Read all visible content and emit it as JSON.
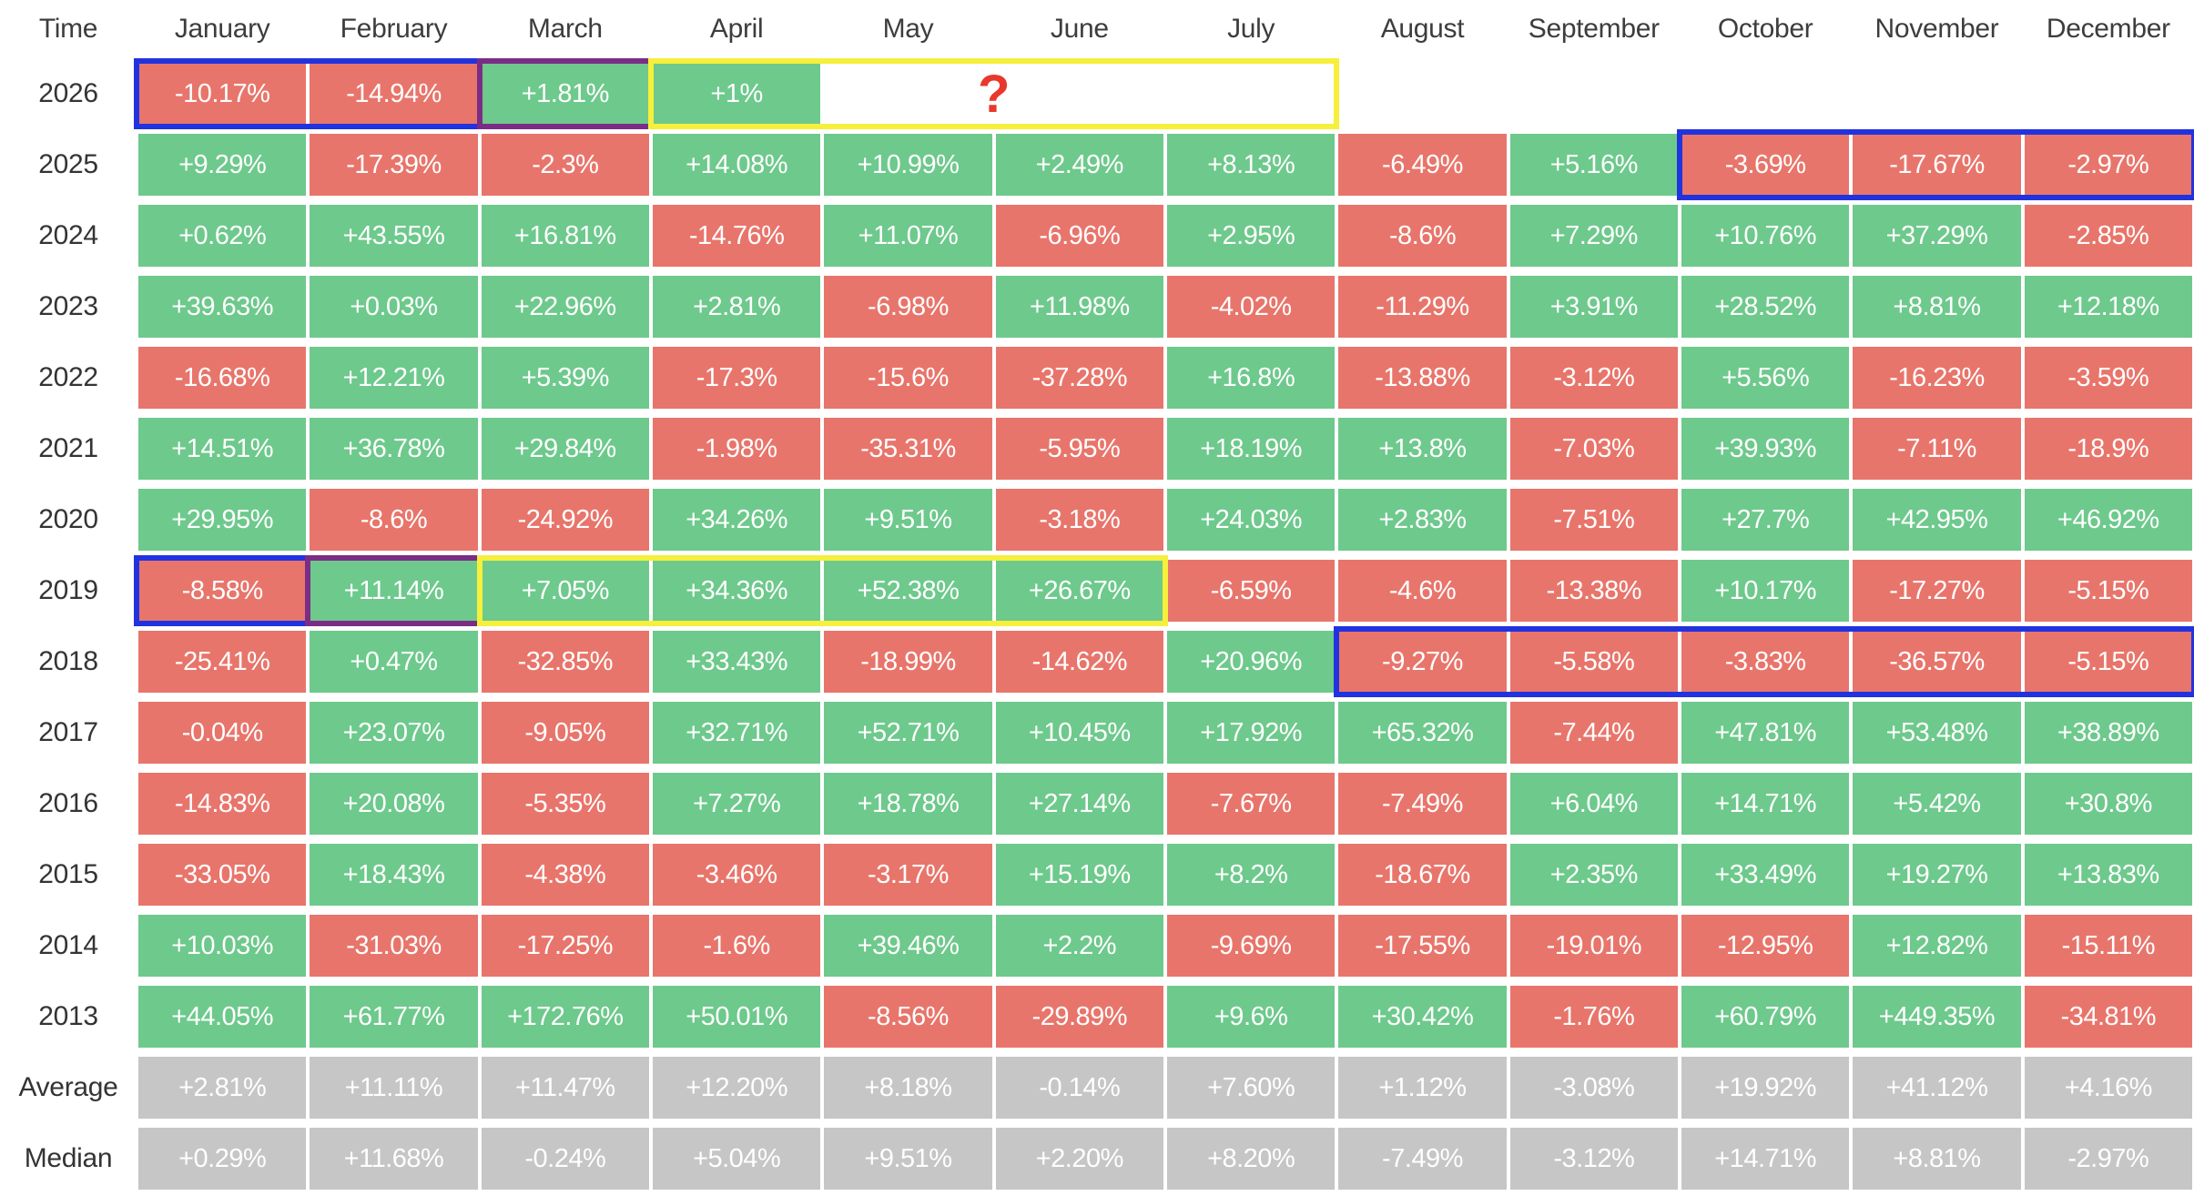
{
  "colors": {
    "positive": "#6ec98c",
    "negative": "#e8756b",
    "summary": "#c6c6c6",
    "highlight_blue": "#2133df",
    "highlight_purple": "#7b2d86",
    "highlight_yellow": "#f6ef3c",
    "question": "#e8382d",
    "header_text": "#3d3d3d",
    "cell_text": "#ffffff"
  },
  "chart_data": {
    "type": "heatmap",
    "corner_label": "Time",
    "columns": [
      "January",
      "February",
      "March",
      "April",
      "May",
      "June",
      "July",
      "August",
      "September",
      "October",
      "November",
      "December"
    ],
    "rows": [
      {
        "label": "2026",
        "type": "year",
        "values": [
          "-10.17%",
          "-14.94%",
          "+1.81%",
          "+1%",
          null,
          null,
          null,
          null,
          null,
          null,
          null,
          null
        ]
      },
      {
        "label": "2025",
        "type": "year",
        "values": [
          "+9.29%",
          "-17.39%",
          "-2.3%",
          "+14.08%",
          "+10.99%",
          "+2.49%",
          "+8.13%",
          "-6.49%",
          "+5.16%",
          "-3.69%",
          "-17.67%",
          "-2.97%"
        ]
      },
      {
        "label": "2024",
        "type": "year",
        "values": [
          "+0.62%",
          "+43.55%",
          "+16.81%",
          "-14.76%",
          "+11.07%",
          "-6.96%",
          "+2.95%",
          "-8.6%",
          "+7.29%",
          "+10.76%",
          "+37.29%",
          "-2.85%"
        ]
      },
      {
        "label": "2023",
        "type": "year",
        "values": [
          "+39.63%",
          "+0.03%",
          "+22.96%",
          "+2.81%",
          "-6.98%",
          "+11.98%",
          "-4.02%",
          "-11.29%",
          "+3.91%",
          "+28.52%",
          "+8.81%",
          "+12.18%"
        ]
      },
      {
        "label": "2022",
        "type": "year",
        "values": [
          "-16.68%",
          "+12.21%",
          "+5.39%",
          "-17.3%",
          "-15.6%",
          "-37.28%",
          "+16.8%",
          "-13.88%",
          "-3.12%",
          "+5.56%",
          "-16.23%",
          "-3.59%"
        ]
      },
      {
        "label": "2021",
        "type": "year",
        "values": [
          "+14.51%",
          "+36.78%",
          "+29.84%",
          "-1.98%",
          "-35.31%",
          "-5.95%",
          "+18.19%",
          "+13.8%",
          "-7.03%",
          "+39.93%",
          "-7.11%",
          "-18.9%"
        ]
      },
      {
        "label": "2020",
        "type": "year",
        "values": [
          "+29.95%",
          "-8.6%",
          "-24.92%",
          "+34.26%",
          "+9.51%",
          "-3.18%",
          "+24.03%",
          "+2.83%",
          "-7.51%",
          "+27.7%",
          "+42.95%",
          "+46.92%"
        ]
      },
      {
        "label": "2019",
        "type": "year",
        "values": [
          "-8.58%",
          "+11.14%",
          "+7.05%",
          "+34.36%",
          "+52.38%",
          "+26.67%",
          "-6.59%",
          "-4.6%",
          "-13.38%",
          "+10.17%",
          "-17.27%",
          "-5.15%"
        ]
      },
      {
        "label": "2018",
        "type": "year",
        "values": [
          "-25.41%",
          "+0.47%",
          "-32.85%",
          "+33.43%",
          "-18.99%",
          "-14.62%",
          "+20.96%",
          "-9.27%",
          "-5.58%",
          "-3.83%",
          "-36.57%",
          "-5.15%"
        ]
      },
      {
        "label": "2017",
        "type": "year",
        "values": [
          "-0.04%",
          "+23.07%",
          "-9.05%",
          "+32.71%",
          "+52.71%",
          "+10.45%",
          "+17.92%",
          "+65.32%",
          "-7.44%",
          "+47.81%",
          "+53.48%",
          "+38.89%"
        ]
      },
      {
        "label": "2016",
        "type": "year",
        "values": [
          "-14.83%",
          "+20.08%",
          "-5.35%",
          "+7.27%",
          "+18.78%",
          "+27.14%",
          "-7.67%",
          "-7.49%",
          "+6.04%",
          "+14.71%",
          "+5.42%",
          "+30.8%"
        ]
      },
      {
        "label": "2015",
        "type": "year",
        "values": [
          "-33.05%",
          "+18.43%",
          "-4.38%",
          "-3.46%",
          "-3.17%",
          "+15.19%",
          "+8.2%",
          "-18.67%",
          "+2.35%",
          "+33.49%",
          "+19.27%",
          "+13.83%"
        ]
      },
      {
        "label": "2014",
        "type": "year",
        "values": [
          "+10.03%",
          "-31.03%",
          "-17.25%",
          "-1.6%",
          "+39.46%",
          "+2.2%",
          "-9.69%",
          "-17.55%",
          "-19.01%",
          "-12.95%",
          "+12.82%",
          "-15.11%"
        ]
      },
      {
        "label": "2013",
        "type": "year",
        "values": [
          "+44.05%",
          "+61.77%",
          "+172.76%",
          "+50.01%",
          "-8.56%",
          "-29.89%",
          "+9.6%",
          "+30.42%",
          "-1.76%",
          "+60.79%",
          "+449.35%",
          "-34.81%"
        ]
      },
      {
        "label": "Average",
        "type": "summary",
        "values": [
          "+2.81%",
          "+11.11%",
          "+11.47%",
          "+12.20%",
          "+8.18%",
          "-0.14%",
          "+7.60%",
          "+1.12%",
          "-3.08%",
          "+19.92%",
          "+41.12%",
          "+4.16%"
        ]
      },
      {
        "label": "Median",
        "type": "summary",
        "values": [
          "+0.29%",
          "+11.68%",
          "-0.24%",
          "+5.04%",
          "+9.51%",
          "+2.20%",
          "+8.20%",
          "-7.49%",
          "-3.12%",
          "+14.71%",
          "+8.81%",
          "-2.97%"
        ]
      }
    ],
    "annotations": {
      "highlights": [
        {
          "row": "2026",
          "col_start": 1,
          "col_end": 2,
          "color": "blue"
        },
        {
          "row": "2026",
          "col_start": 3,
          "col_end": 3,
          "color": "purple"
        },
        {
          "row": "2026",
          "col_start": 4,
          "col_end": 7,
          "color": "yellow"
        },
        {
          "row": "2025",
          "col_start": 10,
          "col_end": 12,
          "color": "blue"
        },
        {
          "row": "2019",
          "col_start": 1,
          "col_end": 1,
          "color": "blue"
        },
        {
          "row": "2019",
          "col_start": 2,
          "col_end": 2,
          "color": "purple"
        },
        {
          "row": "2019",
          "col_start": 3,
          "col_end": 6,
          "color": "yellow"
        },
        {
          "row": "2018",
          "col_start": 8,
          "col_end": 12,
          "color": "blue"
        }
      ],
      "question_mark": {
        "text": "?",
        "row": "2026",
        "col_start": 5,
        "col_end": 6
      }
    }
  }
}
